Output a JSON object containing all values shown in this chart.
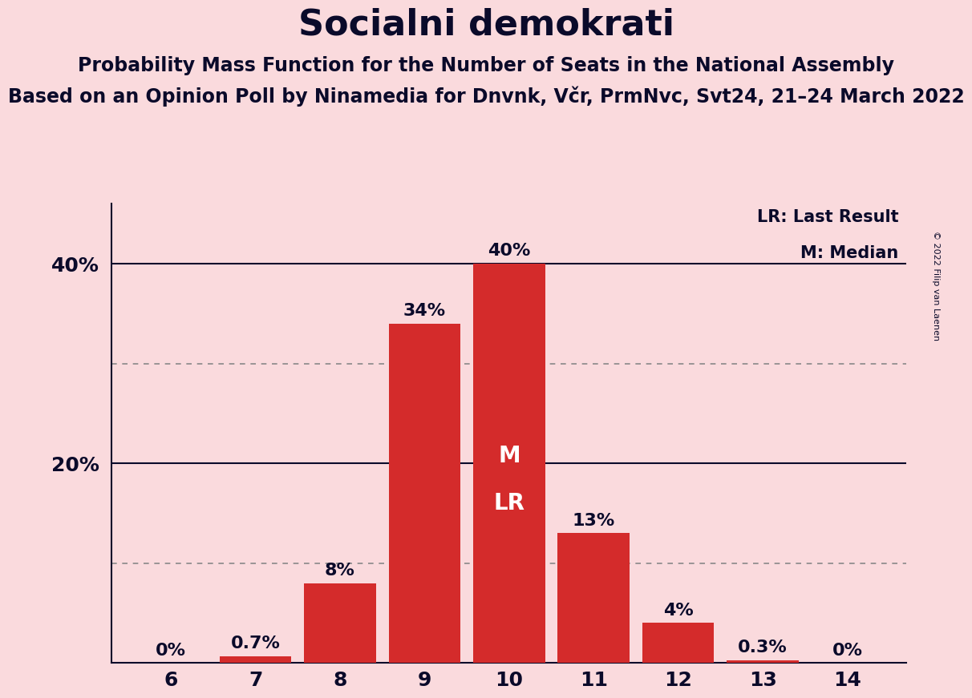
{
  "title": "Socialni demokrati",
  "subtitle1": "Probability Mass Function for the Number of Seats in the National Assembly",
  "subtitle2": "Based on an Opinion Poll by Ninamedia for Dnvnk, Včr, PrmNvc, Svt24, 21–24 March 2022",
  "copyright": "© 2022 Filip van Laenen",
  "categories": [
    6,
    7,
    8,
    9,
    10,
    11,
    12,
    13,
    14
  ],
  "values": [
    0.0,
    0.7,
    8.0,
    34.0,
    40.0,
    13.0,
    4.0,
    0.3,
    0.0
  ],
  "labels": [
    "0%",
    "0.7%",
    "8%",
    "34%",
    "40%",
    "13%",
    "4%",
    "0.3%",
    "0%"
  ],
  "bar_color": "#D42B2B",
  "background_color": "#FADADD",
  "text_color": "#0a0a2a",
  "bar_label_color_light": "#ffffff",
  "median_label": "M",
  "lr_label": "LR",
  "legend_lr": "LR: Last Result",
  "legend_m": "M: Median",
  "median_seat": 10,
  "dotted_lines": [
    10,
    30
  ],
  "solid_lines": [
    20,
    40
  ],
  "ylim": [
    0,
    46
  ],
  "ytick_positions": [
    20,
    40
  ],
  "ytick_labels": [
    "20%",
    "40%"
  ],
  "title_fontsize": 32,
  "subtitle1_fontsize": 17,
  "subtitle2_fontsize": 17,
  "tick_fontsize": 18,
  "bar_label_fontsize": 16,
  "legend_fontsize": 15,
  "ml_fontsize": 20
}
